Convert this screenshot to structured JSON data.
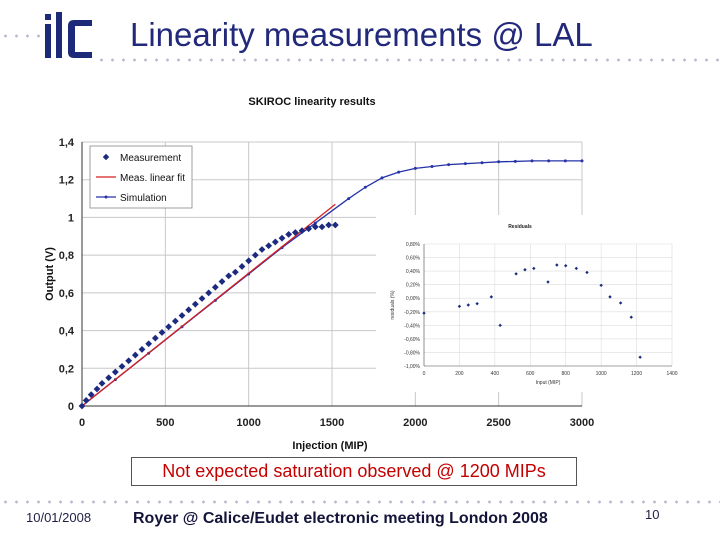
{
  "slide": {
    "title": "Linearity measurements @ LAL",
    "note": "Not  expected saturation observed @ 1200 MIPs",
    "footer_date": "10/01/2008",
    "footer_center": "Royer @ Calice/Eudet electronic meeting London 2008",
    "page_number": "10",
    "logo": "ilc-logo",
    "colors": {
      "title": "#22297a",
      "logo": "#1d2a7a",
      "note_text": "#c40000"
    }
  },
  "chart_data": [
    {
      "type": "scatter",
      "title": "SKIROC linearity results",
      "xlabel": "Injection (MIP)",
      "ylabel": "Output (V)",
      "xlim": [
        0,
        3000
      ],
      "ylim": [
        0,
        1.4
      ],
      "xticks": [
        0,
        500,
        1000,
        1500,
        2000,
        2500,
        3000
      ],
      "yticks": [
        0,
        0.2,
        0.4,
        0.6,
        0.8,
        1,
        1.2,
        1.4
      ],
      "xtick_labels": [
        "0",
        "500",
        "1000",
        "1500",
        "2000",
        "2500",
        "3000"
      ],
      "ytick_labels": [
        "0",
        "0,2",
        "0,4",
        "0,6",
        "0,8",
        "1",
        "1,2",
        "1,4"
      ],
      "grid": true,
      "legend_position": "top-left",
      "series": [
        {
          "name": "Measurement",
          "kind": "points",
          "color": "#1c2a80",
          "marker": "diamond",
          "x": [
            0,
            25,
            55,
            90,
            120,
            160,
            200,
            240,
            280,
            320,
            360,
            400,
            440,
            480,
            520,
            560,
            600,
            640,
            680,
            720,
            760,
            800,
            840,
            880,
            920,
            960,
            1000,
            1040,
            1080,
            1120,
            1160,
            1200,
            1240,
            1280,
            1320,
            1360,
            1400,
            1440,
            1480,
            1520
          ],
          "y": [
            0,
            0.03,
            0.06,
            0.09,
            0.12,
            0.15,
            0.18,
            0.21,
            0.24,
            0.27,
            0.3,
            0.33,
            0.36,
            0.39,
            0.42,
            0.45,
            0.48,
            0.51,
            0.54,
            0.57,
            0.6,
            0.63,
            0.66,
            0.69,
            0.71,
            0.74,
            0.77,
            0.8,
            0.83,
            0.85,
            0.87,
            0.89,
            0.91,
            0.92,
            0.93,
            0.94,
            0.95,
            0.95,
            0.96,
            0.96
          ]
        },
        {
          "name": "Meas. linear fit",
          "kind": "line",
          "color": "#d42020",
          "x": [
            0,
            1520
          ],
          "y": [
            0,
            1.07
          ]
        },
        {
          "name": "Simulation",
          "kind": "line-markers",
          "color": "#2633a8",
          "x": [
            0,
            200,
            400,
            600,
            800,
            1000,
            1200,
            1400,
            1600,
            1700,
            1800,
            1900,
            2000,
            2100,
            2200,
            2300,
            2400,
            2500,
            2600,
            2700,
            2800,
            2900,
            3000
          ],
          "y": [
            0,
            0.14,
            0.28,
            0.42,
            0.56,
            0.7,
            0.84,
            0.97,
            1.1,
            1.16,
            1.21,
            1.24,
            1.26,
            1.27,
            1.28,
            1.285,
            1.29,
            1.295,
            1.297,
            1.3,
            1.3,
            1.3,
            1.3
          ]
        }
      ]
    },
    {
      "type": "scatter",
      "title": "Residuals",
      "xlabel": "Input (MIP)",
      "ylabel": "residuals (%)",
      "xlim": [
        0,
        1400
      ],
      "ylim": [
        -1.0,
        0.8
      ],
      "xticks": [
        0,
        200,
        400,
        600,
        800,
        1000,
        1200,
        1400
      ],
      "yticks": [
        0.8,
        0.6,
        0.4,
        0.2,
        0,
        -0.2,
        -0.4,
        -0.6,
        -0.8,
        -1.0
      ],
      "xtick_labels": [
        "0",
        "200",
        "400",
        "600",
        "800",
        "1000",
        "1200",
        "1400"
      ],
      "ytick_labels": [
        "0,80%",
        "0,60%",
        "0,40%",
        "0,20%",
        "0,00%",
        "-0,20%",
        "-0,40%",
        "-0,60%",
        "-0,80%",
        "-1,00%"
      ],
      "grid": true,
      "series": [
        {
          "kind": "points",
          "color": "#1c2a80",
          "marker": "diamond",
          "x": [
            0,
            200,
            250,
            300,
            380,
            430,
            520,
            570,
            620,
            700,
            750,
            800,
            860,
            920,
            1000,
            1050,
            1110,
            1170,
            1220
          ],
          "y": [
            -0.22,
            -0.12,
            -0.1,
            -0.08,
            0.02,
            -0.4,
            0.36,
            0.42,
            0.44,
            0.24,
            0.49,
            0.48,
            0.44,
            0.38,
            0.19,
            0.02,
            -0.07,
            -0.28,
            -0.87
          ]
        }
      ]
    }
  ]
}
